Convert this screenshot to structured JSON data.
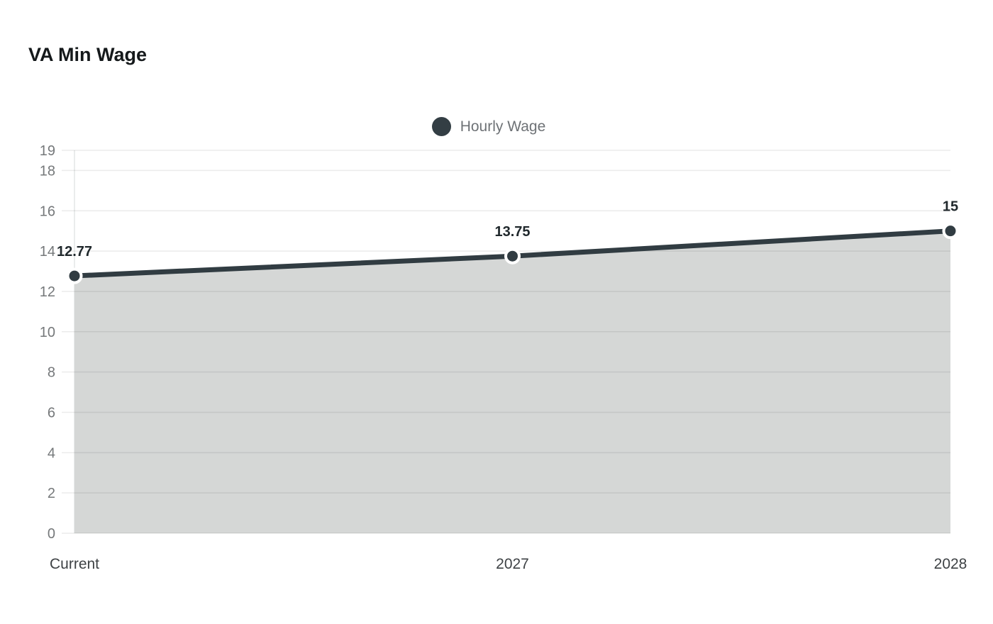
{
  "header": {
    "title": "VA Min Wage"
  },
  "legend": {
    "position": "top-center",
    "items": [
      {
        "label": "Hourly Wage",
        "color": "#333e44",
        "marker": "circle-icon"
      }
    ]
  },
  "chart_data": {
    "type": "area",
    "title": "VA Min Wage",
    "categories": [
      "Current",
      "2027",
      "2028"
    ],
    "series": [
      {
        "name": "Hourly Wage",
        "values": [
          12.77,
          13.75,
          15
        ]
      }
    ],
    "data_labels": [
      "12.77",
      "13.75",
      "15"
    ],
    "xlabel": "",
    "ylabel": "",
    "ylim": [
      0,
      19
    ],
    "yticks": [
      0,
      2,
      4,
      6,
      8,
      10,
      12,
      14,
      16,
      18,
      19
    ],
    "grid": true,
    "legend_position": "top-center",
    "colors": {
      "line": "#313c42",
      "area_fill": "#d5d7d6",
      "point_fill": "#313c42",
      "point_ring": "#ffffff",
      "gridline": "rgba(0,0,0,0.08)",
      "axis_line": "#e4e6e5",
      "ytick_label": "#75787a",
      "xtick_label": "#3e4245",
      "data_label": "#20282c",
      "title": "#15191b",
      "legend_text": "#6e7276"
    }
  }
}
